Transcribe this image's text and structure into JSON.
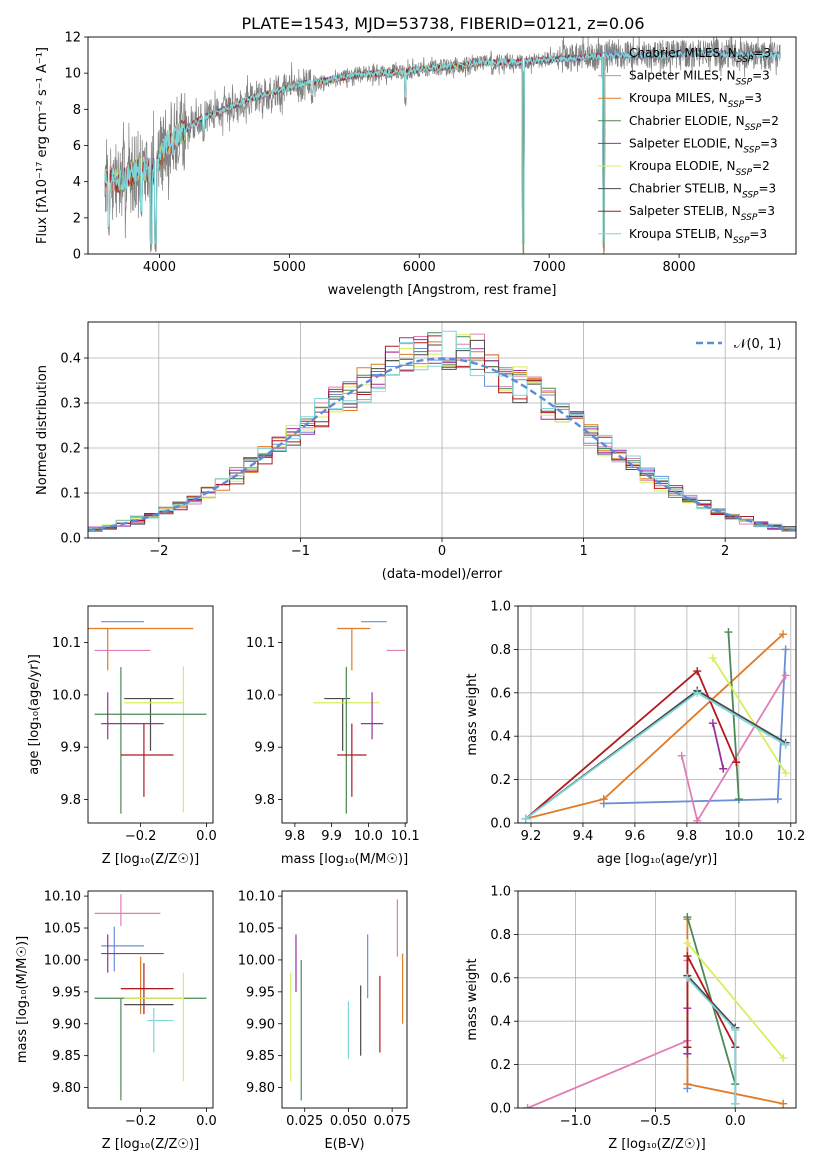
{
  "figure": {
    "title": "PLATE=1543, MJD=53738, FIBERID=0121, z=0.06"
  },
  "colors": {
    "Chabrier MILES": "#6a8fd6",
    "Salpeter MILES": "#e07fb7",
    "Kroupa MILES": "#e07a25",
    "Chabrier ELODIE": "#4c8a58",
    "Salpeter ELODIE": "#9a2f9e",
    "Kroupa ELODIE": "#d7ee5e",
    "Chabrier STELIB": "#4a4a4a",
    "Salpeter STELIB": "#b0191e",
    "Kroupa STELIB": "#7fd6d9",
    "data": "#808080",
    "gaussian": "#5b8bd9",
    "grid": "#b0b0b0"
  },
  "chart_data": [
    {
      "id": "spectrum",
      "type": "line",
      "title": "PLATE=1543, MJD=53738, FIBERID=0121, z=0.06",
      "xlabel": "wavelength [Angstrom, rest frame]",
      "ylabel": "Flux [fλ10⁻¹⁷ erg cm⁻² s⁻¹ A⁻¹]",
      "xlim": [
        3450,
        8900
      ],
      "ylim": [
        0,
        12
      ],
      "xticks": [
        "4000",
        "5000",
        "6000",
        "7000",
        "8000"
      ],
      "yticks": [
        "0",
        "2",
        "4",
        "6",
        "8",
        "10",
        "12"
      ],
      "grid": false,
      "legend_position": "right",
      "legend": [
        "Chabrier MILES, N_SSP=3",
        "Salpeter MILES, N_SSP=3",
        "Kroupa MILES, N_SSP=3",
        "Chabrier ELODIE, N_SSP=2",
        "Salpeter ELODIE, N_SSP=3",
        "Kroupa ELODIE, N_SSP=2",
        "Chabrier STELIB, N_SSP=3",
        "Salpeter STELIB, N_SSP=3",
        "Kroupa STELIB, N_SSP=3"
      ],
      "continuum": {
        "x": [
          3580,
          3700,
          3850,
          3950,
          4050,
          4150,
          4300,
          4500,
          4700,
          4900,
          5100,
          5300,
          5500,
          5700,
          5900,
          6100,
          6300,
          6500,
          6700,
          6900,
          7100,
          7300,
          7500,
          7700,
          7900,
          8100,
          8300,
          8500,
          8800
        ],
        "y": [
          4.3,
          4.0,
          4.8,
          4.6,
          6.0,
          6.6,
          7.4,
          8.0,
          8.6,
          9.0,
          9.4,
          9.6,
          9.9,
          10.0,
          10.1,
          10.3,
          10.4,
          10.6,
          10.6,
          10.7,
          10.8,
          10.9,
          11.0,
          11.0,
          11.0,
          11.1,
          11.1,
          11.0,
          11.0
        ]
      },
      "features": [
        {
          "x": 3610,
          "y": 1.0
        },
        {
          "x": 3860,
          "y": 1.8
        },
        {
          "x": 3935,
          "y": 0.0
        },
        {
          "x": 3970,
          "y": 0.0
        },
        {
          "x": 4102,
          "y": 5.0
        },
        {
          "x": 4340,
          "y": 6.2
        },
        {
          "x": 4861,
          "y": 8.4
        },
        {
          "x": 5175,
          "y": 8.3
        },
        {
          "x": 5892,
          "y": 8.2
        },
        {
          "x": 6563,
          "y": 9.8
        },
        {
          "x": 6800,
          "y": 0.0
        },
        {
          "x": 7420,
          "y": 0.0
        }
      ]
    },
    {
      "id": "residuals",
      "type": "line",
      "xlabel": "(data-model)/error",
      "ylabel": "Normed distribution",
      "xlim": [
        -2.5,
        2.5
      ],
      "ylim": [
        0,
        0.48
      ],
      "xticks": [
        "−2",
        "−1",
        "0",
        "1",
        "2"
      ],
      "yticks": [
        "0.0",
        "0.1",
        "0.2",
        "0.3",
        "0.4"
      ],
      "grid": true,
      "legend_position": "upper right",
      "legend": [
        "𝒩(0, 1)"
      ],
      "bins": {
        "start": -2.5,
        "width": 0.1,
        "count": 50
      }
    },
    {
      "id": "z-age",
      "type": "scatter",
      "xlabel": "Z [log₁₀(Z/Z☉)]",
      "ylabel": "age  [log₁₀(age/yr)]",
      "xlim": [
        -0.36,
        0.02
      ],
      "ylim": [
        9.755,
        10.17
      ],
      "xticks": [
        "−0.2",
        "0.0"
      ],
      "yticks": [
        "9.8",
        "9.9",
        "10.0",
        "10.1"
      ],
      "grid": false,
      "points": [
        {
          "model": "Chabrier MILES",
          "x": -0.28,
          "xerr": [
            0.04,
            0.09
          ],
          "y": 10.14,
          "yerr": [
            0.0,
            0.0
          ]
        },
        {
          "model": "Kroupa MILES",
          "x": -0.3,
          "xerr": [
            0.06,
            0.26
          ],
          "y": 10.127,
          "yerr": [
            0.08,
            0.0
          ]
        },
        {
          "model": "Salpeter MILES",
          "x": -0.29,
          "xerr": [
            0.05,
            0.12
          ],
          "y": 10.085,
          "yerr": [
            0.0,
            0.0
          ]
        },
        {
          "model": "Chabrier STELIB",
          "x": -0.17,
          "xerr": [
            0.08,
            0.07
          ],
          "y": 9.993,
          "yerr": [
            0.1,
            0.0
          ]
        },
        {
          "model": "Kroupa ELODIE",
          "x": -0.07,
          "xerr": [
            0.18,
            0.0
          ],
          "y": 9.985,
          "yerr": [
            0.21,
            0.07
          ]
        },
        {
          "model": "Chabrier ELODIE",
          "x": -0.26,
          "xerr": [
            0.08,
            0.26
          ],
          "y": 9.963,
          "yerr": [
            0.19,
            0.09
          ]
        },
        {
          "model": "Salpeter ELODIE",
          "x": -0.3,
          "xerr": [
            0.02,
            0.17
          ],
          "y": 9.945,
          "yerr": [
            0.03,
            0.06
          ]
        },
        {
          "model": "Salpeter STELIB",
          "x": -0.19,
          "xerr": [
            0.07,
            0.09
          ],
          "y": 9.885,
          "yerr": [
            0.08,
            0.06
          ]
        }
      ]
    },
    {
      "id": "mass-age",
      "type": "scatter",
      "xlabel": "mass [log₁₀(M/M☉)]",
      "ylabel": "",
      "xlim": [
        9.765,
        10.105
      ],
      "ylim": [
        9.755,
        10.17
      ],
      "xticks": [
        "9.8",
        "9.9",
        "10.0",
        "10.1"
      ],
      "yticks": [
        "9.8",
        "9.9",
        "10.0",
        "10.1"
      ],
      "grid": false,
      "points": [
        {
          "model": "Chabrier MILES",
          "x": 10.02,
          "xerr": [
            0.04,
            0.03
          ],
          "y": 10.14,
          "yerr": [
            0.0,
            0.0
          ]
        },
        {
          "model": "Kroupa MILES",
          "x": 9.955,
          "xerr": [
            0.04,
            0.05
          ],
          "y": 10.127,
          "yerr": [
            0.08,
            0.0
          ]
        },
        {
          "model": "Salpeter MILES",
          "x": 10.07,
          "xerr": [
            0.02,
            0.03
          ],
          "y": 10.085,
          "yerr": [
            0.0,
            0.0
          ]
        },
        {
          "model": "Chabrier STELIB",
          "x": 9.93,
          "xerr": [
            0.05,
            0.02
          ],
          "y": 9.993,
          "yerr": [
            0.1,
            0.0
          ]
        },
        {
          "model": "Kroupa ELODIE",
          "x": 9.94,
          "xerr": [
            0.09,
            0.09
          ],
          "y": 9.985,
          "yerr": [
            0.21,
            0.07
          ]
        },
        {
          "model": "Chabrier ELODIE",
          "x": 9.94,
          "xerr": [
            0.0,
            0.0
          ],
          "y": 9.963,
          "yerr": [
            0.19,
            0.09
          ]
        },
        {
          "model": "Salpeter ELODIE",
          "x": 10.01,
          "xerr": [
            0.03,
            0.03
          ],
          "y": 9.945,
          "yerr": [
            0.03,
            0.06
          ]
        },
        {
          "model": "Salpeter STELIB",
          "x": 9.955,
          "xerr": [
            0.04,
            0.04
          ],
          "y": 9.885,
          "yerr": [
            0.08,
            0.06
          ]
        }
      ]
    },
    {
      "id": "age-weight",
      "type": "line",
      "xlabel": "age  [log₁₀(age/yr)]",
      "ylabel": "mass weight",
      "xlim": [
        9.15,
        10.22
      ],
      "ylim": [
        0,
        1
      ],
      "xticks": [
        "9.2",
        "9.4",
        "9.6",
        "9.8",
        "10.0",
        "10.2"
      ],
      "yticks": [
        "0.0",
        "0.2",
        "0.4",
        "0.6",
        "0.8",
        "1.0"
      ],
      "grid": true,
      "series": [
        {
          "model": "Chabrier MILES",
          "x": [
            9.48,
            10.15,
            10.18
          ],
          "y": [
            0.09,
            0.11,
            0.8
          ]
        },
        {
          "model": "Salpeter MILES",
          "x": [
            9.78,
            9.84,
            10.18
          ],
          "y": [
            0.31,
            0.01,
            0.68
          ]
        },
        {
          "model": "Kroupa MILES",
          "x": [
            9.18,
            9.48,
            10.17
          ],
          "y": [
            0.02,
            0.11,
            0.87
          ]
        },
        {
          "model": "Chabrier ELODIE",
          "x": [
            9.96,
            10.0
          ],
          "y": [
            0.88,
            0.11
          ]
        },
        {
          "model": "Salpeter ELODIE",
          "x": [
            9.9,
            9.94
          ],
          "y": [
            0.46,
            0.25
          ]
        },
        {
          "model": "Kroupa ELODIE",
          "x": [
            9.9,
            10.18
          ],
          "y": [
            0.76,
            0.23
          ]
        },
        {
          "model": "Chabrier STELIB",
          "x": [
            9.18,
            9.84,
            10.18
          ],
          "y": [
            0.02,
            0.61,
            0.37
          ]
        },
        {
          "model": "Salpeter STELIB",
          "x": [
            9.18,
            9.84,
            9.99
          ],
          "y": [
            0.02,
            0.7,
            0.28
          ]
        },
        {
          "model": "Kroupa STELIB",
          "x": [
            9.18,
            9.84,
            10.18
          ],
          "y": [
            0.02,
            0.6,
            0.36
          ]
        }
      ]
    },
    {
      "id": "z-mass",
      "type": "scatter",
      "xlabel": "Z [log₁₀(Z/Z☉)]",
      "ylabel": "mass [log₁₀(M/M☉)]",
      "xlim": [
        -0.36,
        0.02
      ],
      "ylim": [
        9.768,
        10.108
      ],
      "xticks": [
        "−0.2",
        "0.0"
      ],
      "yticks": [
        "9.80",
        "9.85",
        "9.90",
        "9.95",
        "10.00",
        "10.05",
        "10.10"
      ],
      "grid": false,
      "points": [
        {
          "model": "Salpeter MILES",
          "x": -0.26,
          "xerr": [
            0.08,
            0.12
          ],
          "y": 10.073,
          "yerr": [
            0.02,
            0.03
          ]
        },
        {
          "model": "Chabrier MILES",
          "x": -0.28,
          "xerr": [
            0.04,
            0.09
          ],
          "y": 10.022,
          "yerr": [
            0.04,
            0.03
          ]
        },
        {
          "model": "Salpeter ELODIE",
          "x": -0.3,
          "xerr": [
            0.02,
            0.17
          ],
          "y": 10.01,
          "yerr": [
            0.03,
            0.03
          ]
        },
        {
          "model": "Kroupa MILES",
          "x": -0.2,
          "xerr": [
            0.06,
            0.08
          ],
          "y": 9.955,
          "yerr": [
            0.04,
            0.05
          ]
        },
        {
          "model": "Salpeter STELIB",
          "x": -0.19,
          "xerr": [
            0.07,
            0.09
          ],
          "y": 9.955,
          "yerr": [
            0.04,
            0.04
          ]
        },
        {
          "model": "Chabrier ELODIE",
          "x": -0.26,
          "xerr": [
            0.08,
            0.26
          ],
          "y": 9.94,
          "yerr": [
            0.16,
            0.0
          ]
        },
        {
          "model": "Kroupa ELODIE",
          "x": -0.07,
          "xerr": [
            0.18,
            0.0
          ],
          "y": 9.94,
          "yerr": [
            0.13,
            0.04
          ]
        },
        {
          "model": "Chabrier STELIB",
          "x": -0.17,
          "xerr": [
            0.08,
            0.07
          ],
          "y": 9.93,
          "yerr": [
            0.0,
            0.0
          ]
        },
        {
          "model": "Kroupa STELIB",
          "x": -0.16,
          "xerr": [
            0.02,
            0.06
          ],
          "y": 9.905,
          "yerr": [
            0.05,
            0.02
          ]
        }
      ]
    },
    {
      "id": "ebv-mass",
      "type": "scatter",
      "xlabel": "E(B-V)",
      "ylabel": "",
      "xlim": [
        0.012,
        0.0835
      ],
      "ylim": [
        9.768,
        10.108
      ],
      "xticks": [
        "0.025",
        "0.050",
        "0.075"
      ],
      "yticks": [
        "9.80",
        "9.85",
        "9.90",
        "9.95",
        "10.00",
        "10.05",
        "10.10"
      ],
      "grid": false,
      "points": [
        {
          "model": "Salpeter MILES",
          "x": 0.078,
          "y": 10.05,
          "yerr": [
            0.045,
            0.045
          ]
        },
        {
          "model": "Chabrier MILES",
          "x": 0.061,
          "y": 9.99,
          "yerr": [
            0.05,
            0.05
          ]
        },
        {
          "model": "Salpeter ELODIE",
          "x": 0.02,
          "y": 9.995,
          "yerr": [
            0.045,
            0.045
          ]
        },
        {
          "model": "Kroupa MILES",
          "x": 0.081,
          "y": 9.955,
          "yerr": [
            0.055,
            0.055
          ]
        },
        {
          "model": "Salpeter STELIB",
          "x": 0.068,
          "y": 9.915,
          "yerr": [
            0.06,
            0.06
          ]
        },
        {
          "model": "Chabrier ELODIE",
          "x": 0.023,
          "y": 9.89,
          "yerr": [
            0.11,
            0.11
          ]
        },
        {
          "model": "Kroupa ELODIE",
          "x": 0.017,
          "y": 9.895,
          "yerr": [
            0.085,
            0.085
          ]
        },
        {
          "model": "Chabrier STELIB",
          "x": 0.057,
          "y": 9.905,
          "yerr": [
            0.055,
            0.055
          ]
        },
        {
          "model": "Kroupa STELIB",
          "x": 0.05,
          "y": 9.89,
          "yerr": [
            0.045,
            0.045
          ]
        }
      ]
    },
    {
      "id": "z-weight",
      "type": "line",
      "xlabel": "Z [log₁₀(Z/Z☉)]",
      "ylabel": "mass weight",
      "xlim": [
        -1.36,
        0.38
      ],
      "ylim": [
        0,
        1
      ],
      "xticks": [
        "−1.0",
        "−0.5",
        "0.0"
      ],
      "yticks": [
        "0.0",
        "0.2",
        "0.4",
        "0.6",
        "0.8",
        "1.0"
      ],
      "grid": true,
      "series": [
        {
          "model": "Chabrier MILES",
          "x": [
            -0.3,
            -0.3,
            0.0
          ],
          "y": [
            0.09,
            0.6,
            0.37
          ]
        },
        {
          "model": "Salpeter MILES",
          "x": [
            -1.3,
            -0.3,
            -0.3
          ],
          "y": [
            0.0,
            0.31,
            0.68
          ]
        },
        {
          "model": "Kroupa MILES",
          "x": [
            0.3,
            -0.3,
            -0.3
          ],
          "y": [
            0.02,
            0.11,
            0.87
          ]
        },
        {
          "model": "Chabrier ELODIE",
          "x": [
            -0.3,
            0.0
          ],
          "y": [
            0.88,
            0.11
          ]
        },
        {
          "model": "Salpeter ELODIE",
          "x": [
            -0.3,
            -0.3
          ],
          "y": [
            0.46,
            0.25
          ]
        },
        {
          "model": "Kroupa ELODIE",
          "x": [
            -0.3,
            0.3
          ],
          "y": [
            0.76,
            0.23
          ]
        },
        {
          "model": "Chabrier STELIB",
          "x": [
            -0.3,
            0.0,
            0.0
          ],
          "y": [
            0.61,
            0.37,
            0.02
          ]
        },
        {
          "model": "Salpeter STELIB",
          "x": [
            -0.3,
            -0.3,
            0.0
          ],
          "y": [
            0.28,
            0.7,
            0.28
          ]
        },
        {
          "model": "Kroupa STELIB",
          "x": [
            -0.3,
            0.0,
            0.0
          ],
          "y": [
            0.6,
            0.36,
            0.02
          ]
        }
      ]
    }
  ]
}
